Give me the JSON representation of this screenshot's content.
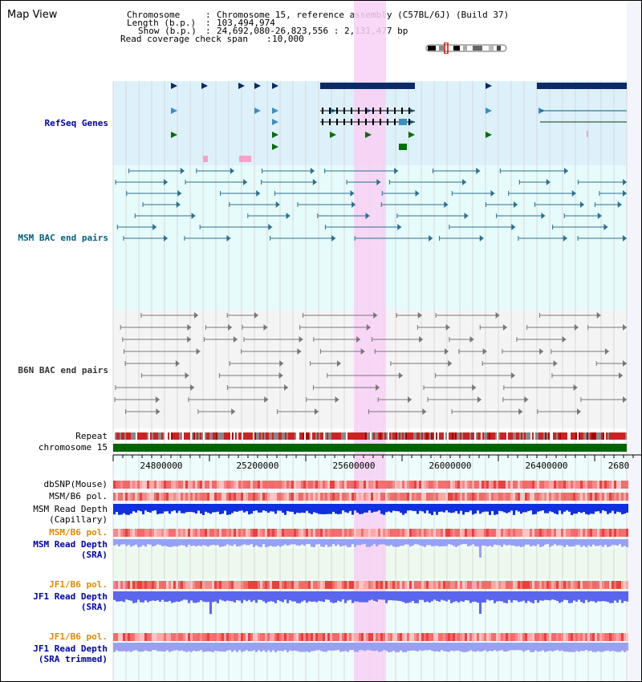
{
  "title": "Map View",
  "info": {
    "chromosome_label": "Chromosome",
    "chromosome_value": "Chromosome 15, reference assembly (C57BL/6J) (Build 37)",
    "length_label": "Length (b.p.)",
    "length_value": "103,494,974",
    "show_label": "Show (b.p.)",
    "show_value": "24,692,080-26,823,556 : 2,131,477 bp",
    "coverage_label": "Read coverage check span",
    "coverage_value": "10,000"
  },
  "tracks": {
    "refseq": "RefSeq Genes",
    "msm_bac": "MSM BAC end pairs",
    "b6n_bac": "B6N BAC end pairs",
    "repeat": "Repeat",
    "chromosome": "chromosome 15",
    "dbsnp": "dbSNP(Mouse)",
    "msm_b6_pol_1": "MSM/B6 pol.",
    "msm_depth_cap_1": "MSM Read Depth",
    "msm_depth_cap_2": "(Capillary)",
    "msm_b6_pol_2": "MSM/B6 pol.",
    "msm_depth_sra_1": "MSM Read Depth",
    "msm_depth_sra_2": "(SRA)",
    "jf1_b6_pol_1": "JF1/B6 pol.",
    "jf1_depth_sra_1": "JF1 Read Depth",
    "jf1_depth_sra_2": "(SRA)",
    "jf1_b6_pol_2": "JF1/B6 pol.",
    "jf1_depth_trim_1": "JF1 Read Depth",
    "jf1_depth_trim_2": "(SRA trimmed)"
  },
  "axis": {
    "ticks": [
      "24800000",
      "25200000",
      "25600000",
      "26000000",
      "26400000",
      "2680"
    ]
  },
  "colors": {
    "refseq_label": "#0000aa",
    "msm_label": "#006080",
    "b6n_label": "#333333",
    "orange_label": "#e08a00",
    "blue_label": "#0000aa",
    "highlight": "#f8d0f4",
    "refseq_bg": "#ddf1fb",
    "bac_bg": "#e6fbfb",
    "b6n_bg": "#f4f4f4",
    "chromosome_bar": "#006400"
  }
}
